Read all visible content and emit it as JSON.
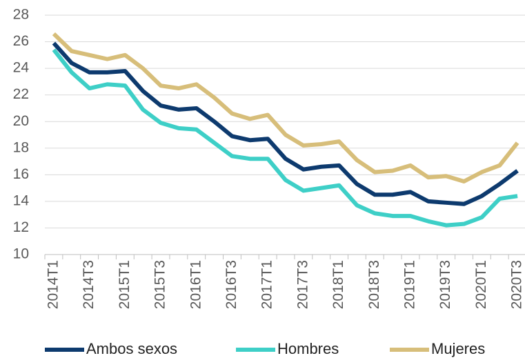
{
  "chart_data": {
    "type": "line",
    "categories": [
      "2014T1",
      null,
      "2014T3",
      null,
      "2015T1",
      null,
      "2015T3",
      null,
      "2016T1",
      null,
      "2016T3",
      null,
      "2017T1",
      null,
      "2017T3",
      null,
      "2018T1",
      null,
      "2018T3",
      null,
      "2019T1",
      null,
      "2019T3",
      null,
      "2020T1",
      null,
      "2020T3"
    ],
    "series": [
      {
        "name": "Ambos sexos",
        "color": "#0d3a6e",
        "values": [
          25.9,
          24.4,
          23.7,
          23.7,
          23.8,
          22.3,
          21.2,
          20.9,
          21.0,
          20.0,
          18.9,
          18.6,
          18.7,
          17.2,
          16.4,
          16.6,
          16.7,
          15.3,
          14.5,
          14.5,
          14.7,
          14.0,
          13.9,
          13.8,
          14.4,
          15.3,
          16.3
        ]
      },
      {
        "name": "Hombres",
        "color": "#3ecfc7",
        "values": [
          25.4,
          23.7,
          22.5,
          22.8,
          22.7,
          20.9,
          19.9,
          19.5,
          19.4,
          18.4,
          17.4,
          17.2,
          17.2,
          15.6,
          14.8,
          15.0,
          15.2,
          13.7,
          13.1,
          12.9,
          12.9,
          12.5,
          12.2,
          12.3,
          12.8,
          14.2,
          14.4
        ]
      },
      {
        "name": "Mujeres",
        "color": "#d7be7a",
        "values": [
          26.6,
          25.3,
          25.0,
          24.7,
          25.0,
          24.0,
          22.7,
          22.5,
          22.8,
          21.8,
          20.6,
          20.2,
          20.5,
          19.0,
          18.2,
          18.3,
          18.5,
          17.1,
          16.2,
          16.3,
          16.7,
          15.8,
          15.9,
          15.5,
          16.2,
          16.7,
          18.4
        ]
      }
    ],
    "ylim": [
      10,
      28
    ],
    "yticks": [
      10,
      12,
      14,
      16,
      18,
      20,
      22,
      24,
      26,
      28
    ],
    "grid": true,
    "legend": "bottom"
  }
}
